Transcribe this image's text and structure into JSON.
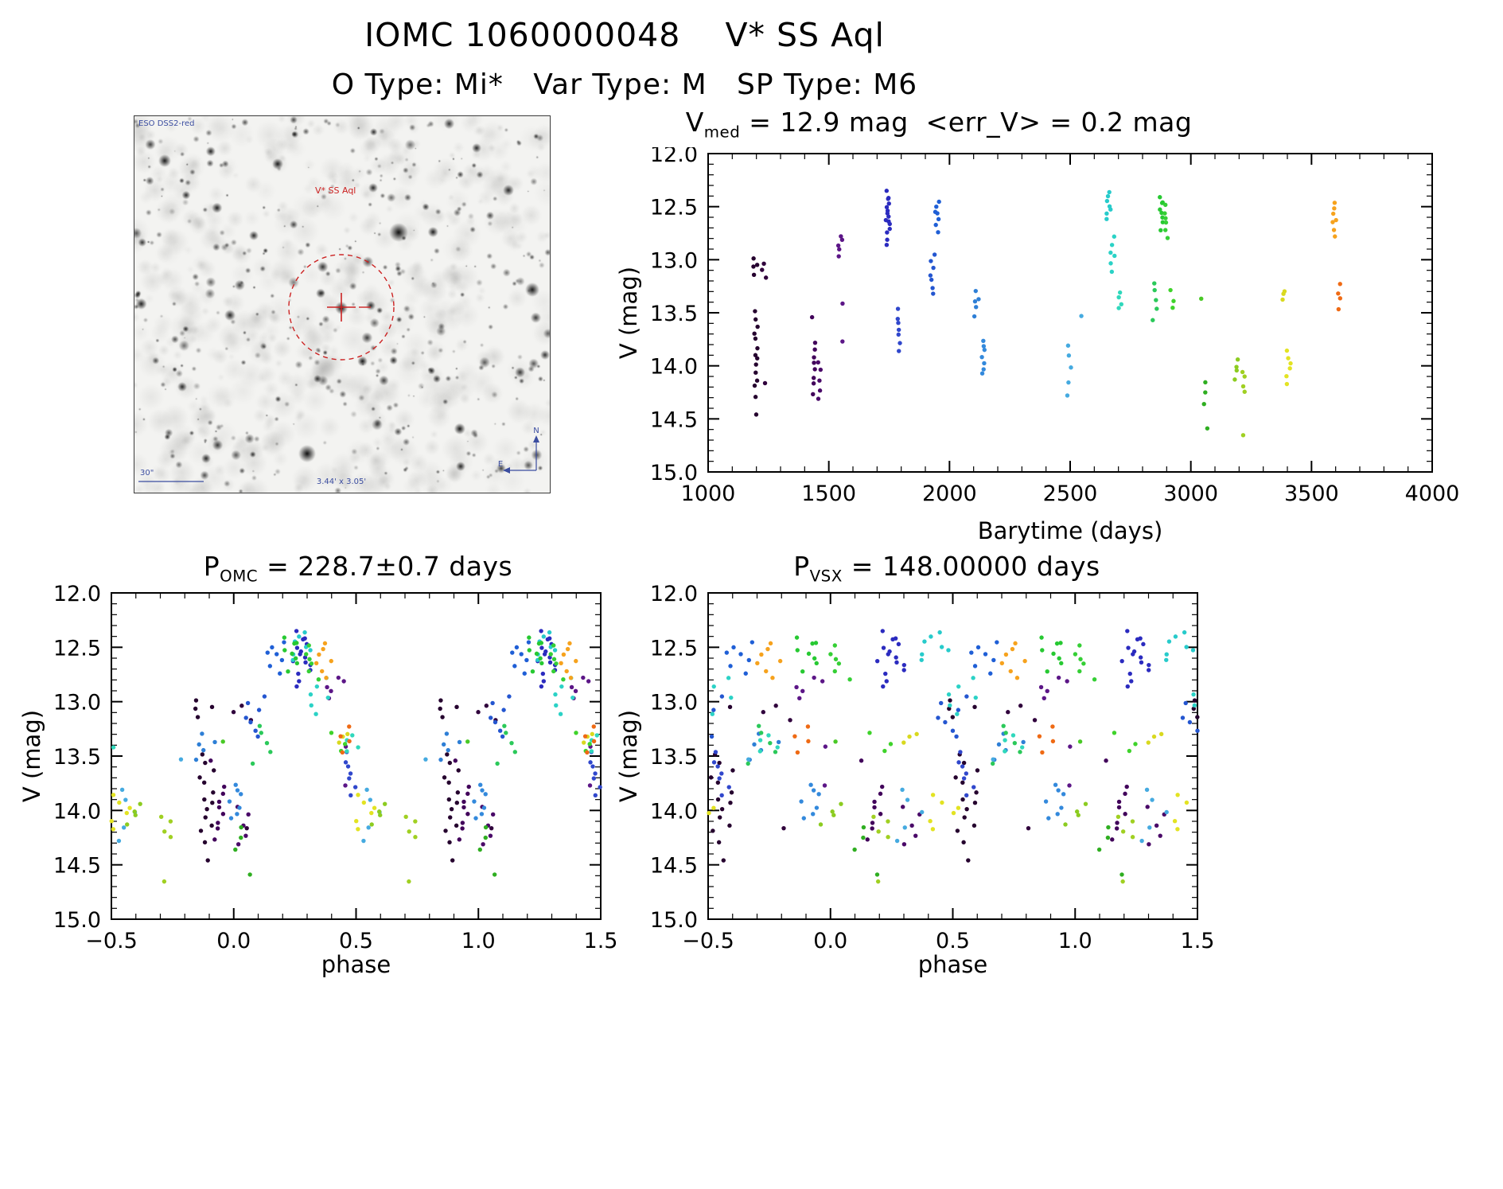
{
  "header": {
    "title": "IOMC 1060000048    V* SS Aql",
    "subtitle": "O Type: Mi*   Var Type: M   SP Type: M6"
  },
  "finding_chart": {
    "survey_label": "ESO DSS2-red",
    "star_label": "V* SS Aql",
    "scale_label": "30\"",
    "fov_label": "3.44' x 3.05'",
    "compass_north": "N",
    "compass_east": "E",
    "marker_color": "#cc2222",
    "annotation_color": "#3b4da0"
  },
  "plots": {
    "lightcurve": {
      "title_base": "V",
      "title_sub": "med",
      "title_rest": " = 12.9 mag  <err_V> = 0.2 mag"
    },
    "omc": {
      "title_base": "P",
      "title_sub": "OMC",
      "title_rest": " = 228.7±0.7 days"
    },
    "vsx": {
      "title_base": "P",
      "title_sub": "VSX",
      "title_rest": " = 148.00000 days"
    }
  },
  "chart_data": {
    "type": "scatter",
    "description": "IOMC photometric light curve of the Mira variable SS Aql: V magnitude vs barycentric time, and the same data folded on the OMC period (228.7 d) and the VSX period (148.0 d). Points are colour-coded by observation epoch (dark purple = early, orange = late).",
    "panels": [
      {
        "id": "lc",
        "title": "V_med = 12.9 mag  <err_V> = 0.2 mag",
        "mode": "time",
        "xlabel": "Barytime (days)",
        "ylabel": "V (mag)",
        "xlim": [
          1000,
          4000
        ],
        "xticks": [
          1000,
          1500,
          2000,
          2500,
          3000,
          3500,
          4000
        ],
        "xminor": 100,
        "xdp": 0,
        "ylim": [
          12.0,
          15.0
        ],
        "yticks": [
          12.0,
          12.5,
          13.0,
          13.5,
          14.0,
          14.5,
          15.0
        ],
        "yminor": 0.1,
        "ydp": 1
      },
      {
        "id": "omc",
        "title": "P_OMC = 228.7+/-0.7 days",
        "mode": "phase",
        "period": 228.7,
        "epoch": 80,
        "xlabel": "phase",
        "ylabel": "V (mag)",
        "xlim": [
          -0.5,
          1.5
        ],
        "xticks": [
          -0.5,
          0.0,
          0.5,
          1.0,
          1.5
        ],
        "xminor": 0.1,
        "xdp": 1,
        "ylim": [
          12.0,
          15.0
        ],
        "yticks": [
          12.0,
          12.5,
          13.0,
          13.5,
          14.0,
          14.5,
          15.0
        ],
        "yminor": 0.1,
        "ydp": 1
      },
      {
        "id": "vsx",
        "title": "P_VSX = 148.00000 days",
        "mode": "phase",
        "period": 148.0,
        "epoch": 80,
        "xlabel": "phase",
        "ylabel": "V (mag)",
        "xlim": [
          -0.5,
          1.5
        ],
        "xticks": [
          -0.5,
          0.0,
          0.5,
          1.0,
          1.5
        ],
        "xminor": 0.1,
        "xdp": 1,
        "ylim": [
          12.0,
          15.0
        ],
        "yticks": [
          12.0,
          12.5,
          13.0,
          13.5,
          14.0,
          14.5,
          15.0
        ],
        "yminor": 0.1,
        "ydp": 1
      }
    ],
    "clusters": [
      {
        "t": 1196,
        "color": "#25002e",
        "mags": [
          12.98,
          13.03,
          13.08,
          13.13,
          13.5,
          13.57,
          13.63,
          13.7,
          13.76,
          13.82,
          13.88,
          13.94,
          14.0,
          14.06,
          14.12,
          14.2,
          14.3,
          14.44
        ]
      },
      {
        "t": 1232,
        "color": "#30003c",
        "mags": [
          13.04,
          13.09,
          13.15,
          14.18
        ]
      },
      {
        "t": 1438,
        "color": "#41005a",
        "mags": [
          13.55,
          13.8,
          13.86,
          13.92,
          13.98,
          14.04,
          14.1,
          14.18,
          14.26
        ]
      },
      {
        "t": 1462,
        "color": "#4a0968",
        "mags": [
          13.95,
          14.03,
          14.12,
          14.22,
          14.3
        ]
      },
      {
        "t": 1548,
        "color": "#5c1687",
        "mags": [
          12.76,
          12.81,
          12.86,
          12.91,
          12.96,
          13.42,
          13.78
        ]
      },
      {
        "t": 1745,
        "color": "#2b2bbf",
        "mags": [
          12.36,
          12.4,
          12.43,
          12.46,
          12.49,
          12.52,
          12.55,
          12.58,
          12.61,
          12.64,
          12.68,
          12.72,
          12.76,
          12.8,
          12.85
        ]
      },
      {
        "t": 1788,
        "color": "#3047cc",
        "mags": [
          13.48,
          13.54,
          13.6,
          13.66,
          13.72,
          13.79,
          13.86
        ]
      },
      {
        "t": 1948,
        "color": "#1f5fd6",
        "mags": [
          12.46,
          12.5,
          12.54,
          12.58,
          12.63,
          12.68,
          12.73
        ]
      },
      {
        "t": 1930,
        "color": "#2456d0",
        "mags": [
          12.96,
          13.02,
          13.08,
          13.14,
          13.2,
          13.26,
          13.31
        ]
      },
      {
        "t": 2112,
        "color": "#2e7fd6",
        "mags": [
          13.31,
          13.36,
          13.41,
          13.46,
          13.52
        ]
      },
      {
        "t": 2140,
        "color": "#3389dc",
        "mags": [
          13.76,
          13.81,
          13.86,
          13.91,
          13.96,
          14.02,
          14.08
        ]
      },
      {
        "t": 2496,
        "color": "#45aae0",
        "mags": [
          13.82,
          13.92,
          14.02,
          14.14,
          14.28
        ]
      },
      {
        "t": 2544,
        "color": "#45aae0",
        "mags": [
          13.52
        ]
      },
      {
        "t": 2660,
        "color": "#27cbcb",
        "mags": [
          12.36,
          12.4,
          12.44,
          12.48,
          12.52,
          12.57,
          12.62
        ]
      },
      {
        "t": 2676,
        "color": "#2bd2c6",
        "mags": [
          12.8,
          12.86,
          12.92,
          12.98,
          13.04,
          13.1
        ]
      },
      {
        "t": 2706,
        "color": "#30d8bc",
        "mags": [
          13.3,
          13.35,
          13.4,
          13.46
        ]
      },
      {
        "t": 2850,
        "color": "#2bc95a",
        "mags": [
          13.22,
          13.3,
          13.38,
          13.46,
          13.55
        ]
      },
      {
        "t": 2875,
        "color": "#27c932",
        "mags": [
          12.4,
          12.44,
          12.48,
          12.52,
          12.56,
          12.61,
          12.66,
          12.71
        ]
      },
      {
        "t": 2898,
        "color": "#35cf35",
        "mags": [
          12.5,
          12.55,
          12.6,
          12.66,
          12.72,
          12.78
        ]
      },
      {
        "t": 2920,
        "color": "#3fd32b",
        "mags": [
          13.3,
          13.38,
          13.46
        ]
      },
      {
        "t": 3045,
        "color": "#49c926",
        "mags": [
          13.36
        ]
      },
      {
        "t": 3062,
        "color": "#2fae21",
        "mags": [
          14.15,
          14.25,
          14.35,
          14.6
        ]
      },
      {
        "t": 3190,
        "color": "#8ccc20",
        "mags": [
          13.94,
          14.0,
          14.06,
          14.12
        ]
      },
      {
        "t": 3215,
        "color": "#a0d022",
        "mags": [
          14.05,
          14.12,
          14.19,
          14.26,
          14.65
        ]
      },
      {
        "t": 3380,
        "color": "#d9d91f",
        "mags": [
          13.3,
          13.34,
          13.38
        ]
      },
      {
        "t": 3405,
        "color": "#e3e322",
        "mags": [
          13.86,
          13.92,
          13.98,
          14.04,
          14.1,
          14.17
        ]
      },
      {
        "t": 3595,
        "color": "#f6a21d",
        "mags": [
          12.46,
          12.51,
          12.56,
          12.61,
          12.66,
          12.72,
          12.78
        ]
      },
      {
        "t": 3612,
        "color": "#ef6a14",
        "mags": [
          13.22,
          13.3,
          13.38,
          13.45
        ]
      }
    ]
  }
}
